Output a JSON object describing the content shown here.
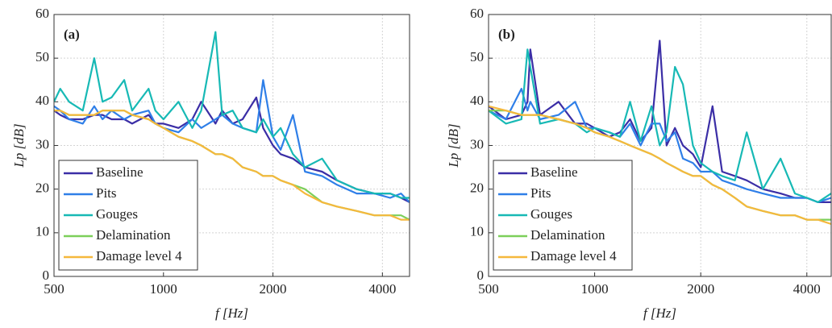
{
  "chart_data": [
    {
      "type": "line",
      "annotation": "(a)",
      "xlabel": "f [Hz]",
      "ylabel": "Lp [dB]",
      "log_x": true,
      "grid": true,
      "legend": "lower left",
      "xlim": [
        500,
        4750
      ],
      "xticks": [
        500,
        1000,
        2000,
        4000
      ],
      "ylim": [
        0,
        60
      ],
      "yticks": [
        0,
        10,
        20,
        30,
        40,
        50,
        60
      ],
      "x": [
        500,
        520,
        550,
        600,
        645,
        680,
        720,
        780,
        820,
        910,
        950,
        1000,
        1100,
        1200,
        1270,
        1390,
        1450,
        1550,
        1650,
        1800,
        1880,
        2000,
        2100,
        2270,
        2450,
        2730,
        3000,
        3400,
        3800,
        4200,
        4500,
        4750
      ],
      "series": [
        {
          "name": "Baseline",
          "color": "#3b2ea6",
          "values": [
            38,
            37,
            36,
            36,
            37,
            37,
            36,
            36,
            35,
            37,
            35,
            35,
            34,
            36,
            40,
            35,
            38,
            35,
            36,
            41,
            34,
            30,
            28,
            27,
            25,
            24,
            22,
            20,
            19,
            19,
            18,
            17
          ]
        },
        {
          "name": "Pits",
          "color": "#2f7fe8",
          "values": [
            39,
            38,
            36,
            35,
            39,
            36,
            38,
            36,
            37,
            38,
            35,
            34,
            33,
            36,
            34,
            36,
            37,
            35,
            34,
            33,
            45,
            32,
            29,
            37,
            24,
            23,
            21,
            19,
            19,
            18,
            19,
            17
          ]
        },
        {
          "name": "Gouges",
          "color": "#17b9b5",
          "values": [
            40,
            43,
            40,
            38,
            50,
            40,
            41,
            45,
            38,
            43,
            38,
            36,
            40,
            34,
            38,
            56,
            37,
            38,
            34,
            33,
            36,
            32,
            34,
            28,
            25,
            27,
            22,
            20,
            19,
            19,
            18,
            18
          ]
        },
        {
          "name": "Delamination",
          "color": "#7ccf5a",
          "values": [
            38,
            38,
            37,
            37,
            37,
            38,
            38,
            38,
            37,
            36,
            35,
            34,
            32,
            31,
            30,
            28,
            28,
            27,
            25,
            24,
            23,
            23,
            22,
            21,
            20,
            17,
            16,
            15,
            14,
            14,
            14,
            13
          ]
        },
        {
          "name": "Damage level 4",
          "color": "#f5b83c",
          "values": [
            38,
            38,
            37,
            37,
            37,
            38,
            38,
            38,
            37,
            36,
            35,
            34,
            32,
            31,
            30,
            28,
            28,
            27,
            25,
            24,
            23,
            23,
            22,
            21,
            19,
            17,
            16,
            15,
            14,
            14,
            13,
            13
          ]
        }
      ]
    },
    {
      "type": "line",
      "annotation": "(b)",
      "xlabel": "f [Hz]",
      "ylabel": "Lp [dB]",
      "log_x": true,
      "grid": true,
      "legend": "lower left",
      "xlim": [
        500,
        4690
      ],
      "xticks": [
        500,
        1000,
        2000,
        4000
      ],
      "ylim": [
        0,
        60
      ],
      "yticks": [
        0,
        10,
        20,
        30,
        40,
        50,
        60
      ],
      "x": [
        500,
        560,
        620,
        645,
        657,
        700,
        790,
        880,
        950,
        1000,
        1100,
        1180,
        1260,
        1350,
        1450,
        1530,
        1600,
        1690,
        1780,
        1900,
        2000,
        2160,
        2300,
        2500,
        2700,
        3000,
        3370,
        3700,
        4000,
        4300,
        4690
      ],
      "series": [
        {
          "name": "Baseline",
          "color": "#3b2ea6",
          "values": [
            39,
            36,
            37,
            40,
            52,
            37,
            40,
            35,
            35,
            34,
            32,
            33,
            36,
            31,
            34,
            54,
            30,
            34,
            30,
            28,
            25,
            39,
            24,
            23,
            22,
            20,
            19,
            18,
            18,
            17,
            17
          ]
        },
        {
          "name": "Pits",
          "color": "#2f7fe8",
          "values": [
            38,
            36,
            43,
            38,
            40,
            36,
            37,
            40,
            34,
            34,
            33,
            32,
            35,
            30,
            35,
            35,
            31,
            33,
            27,
            26,
            24,
            24,
            22,
            21,
            20,
            19,
            18,
            18,
            18,
            17,
            18
          ]
        },
        {
          "name": "Gouges",
          "color": "#17b9b5",
          "values": [
            38,
            35,
            36,
            52,
            48,
            35,
            36,
            35,
            33,
            34,
            33,
            32,
            40,
            31,
            39,
            30,
            33,
            48,
            44,
            30,
            26,
            24,
            23,
            22,
            33,
            20,
            27,
            19,
            18,
            17,
            19
          ]
        },
        {
          "name": "Delamination",
          "color": "#7ccf5a",
          "values": [
            38,
            38,
            37,
            37,
            37,
            37,
            36,
            35,
            34,
            33,
            32,
            31,
            30,
            29,
            28,
            27,
            26,
            25,
            24,
            23,
            23,
            21,
            20,
            18,
            16,
            15,
            14,
            14,
            13,
            13,
            13
          ]
        },
        {
          "name": "Damage level 4",
          "color": "#f5b83c",
          "values": [
            39,
            38,
            37,
            37,
            37,
            37,
            36,
            35,
            34,
            33,
            32,
            31,
            30,
            29,
            28,
            27,
            26,
            25,
            24,
            23,
            23,
            21,
            20,
            18,
            16,
            15,
            14,
            14,
            13,
            13,
            12
          ]
        }
      ]
    }
  ]
}
